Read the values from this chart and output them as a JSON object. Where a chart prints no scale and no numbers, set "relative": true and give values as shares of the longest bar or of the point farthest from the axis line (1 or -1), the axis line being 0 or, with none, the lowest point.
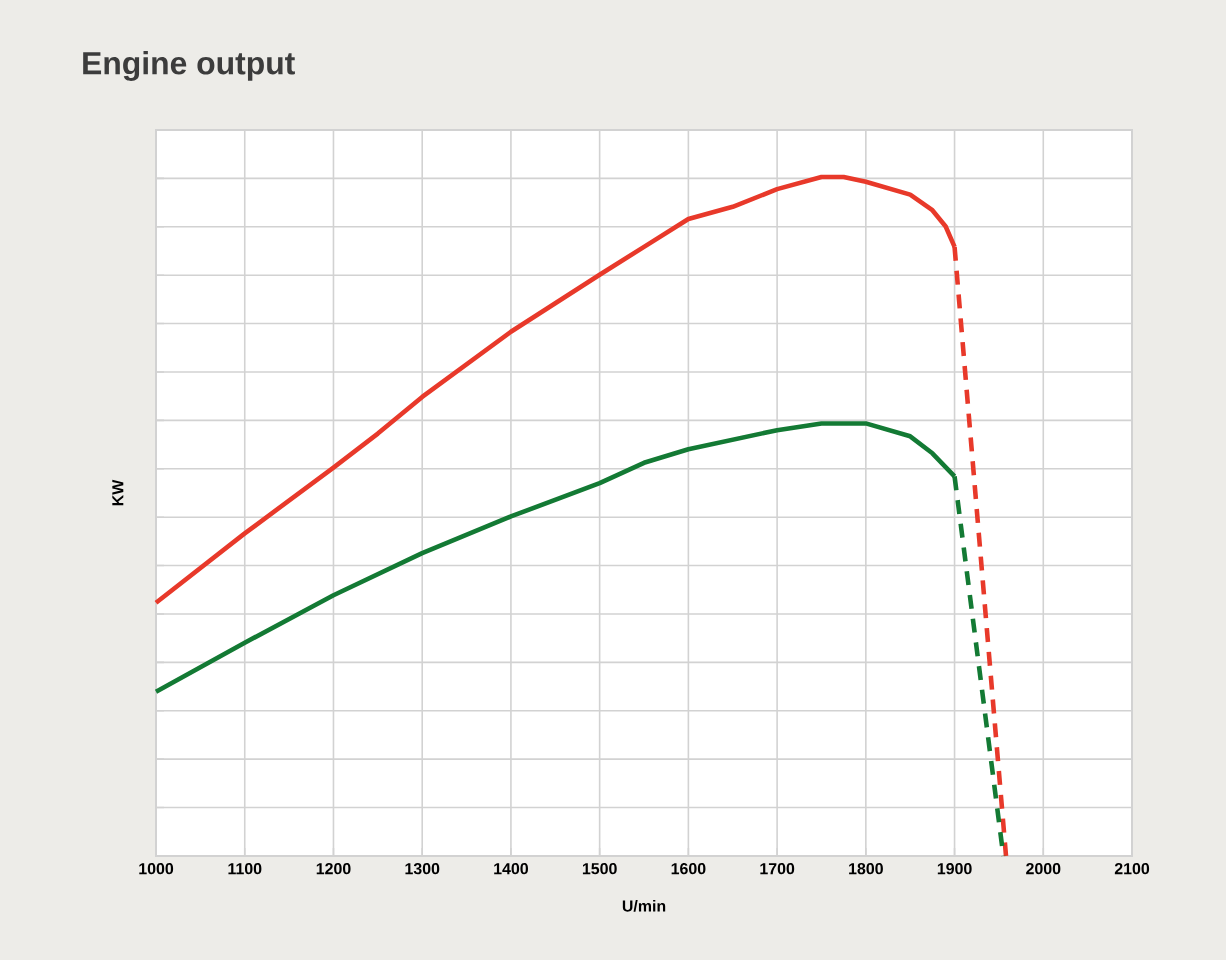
{
  "chart_data": {
    "type": "line",
    "title": "Engine output",
    "xlabel": "U/min",
    "ylabel": "KW",
    "relative": true,
    "grid": true,
    "xlim": [
      1000,
      2100
    ],
    "xticks": [
      1000,
      1100,
      1200,
      1300,
      1400,
      1500,
      1600,
      1700,
      1800,
      1900,
      2000,
      2100
    ],
    "series": [
      {
        "color": "#e8392a",
        "line_style": "solid",
        "x": [
          1000,
          1100,
          1200,
          1250,
          1300,
          1400,
          1500,
          1550,
          1600,
          1650,
          1700,
          1750,
          1775,
          1800,
          1850,
          1875,
          1890,
          1900
        ],
        "values": [
          0.373,
          0.475,
          0.572,
          0.622,
          0.676,
          0.772,
          0.856,
          0.897,
          0.938,
          0.956,
          0.982,
          1,
          1,
          0.993,
          0.974,
          0.951,
          0.927,
          0.897
        ]
      },
      {
        "color": "#e8392a",
        "line_style": "dashed",
        "x": [
          1900,
          1958
        ],
        "values": [
          0.897,
          0
        ]
      },
      {
        "color": "#137a34",
        "line_style": "solid",
        "x": [
          1000,
          1100,
          1200,
          1300,
          1400,
          1500,
          1550,
          1600,
          1650,
          1700,
          1750,
          1800,
          1850,
          1875,
          1900
        ],
        "values": [
          0.242,
          0.314,
          0.384,
          0.446,
          0.5,
          0.549,
          0.579,
          0.599,
          0.613,
          0.627,
          0.637,
          0.637,
          0.618,
          0.593,
          0.559
        ]
      },
      {
        "color": "#137a34",
        "line_style": "dashed",
        "x": [
          1900,
          1955
        ],
        "values": [
          0.559,
          0
        ]
      }
    ]
  }
}
